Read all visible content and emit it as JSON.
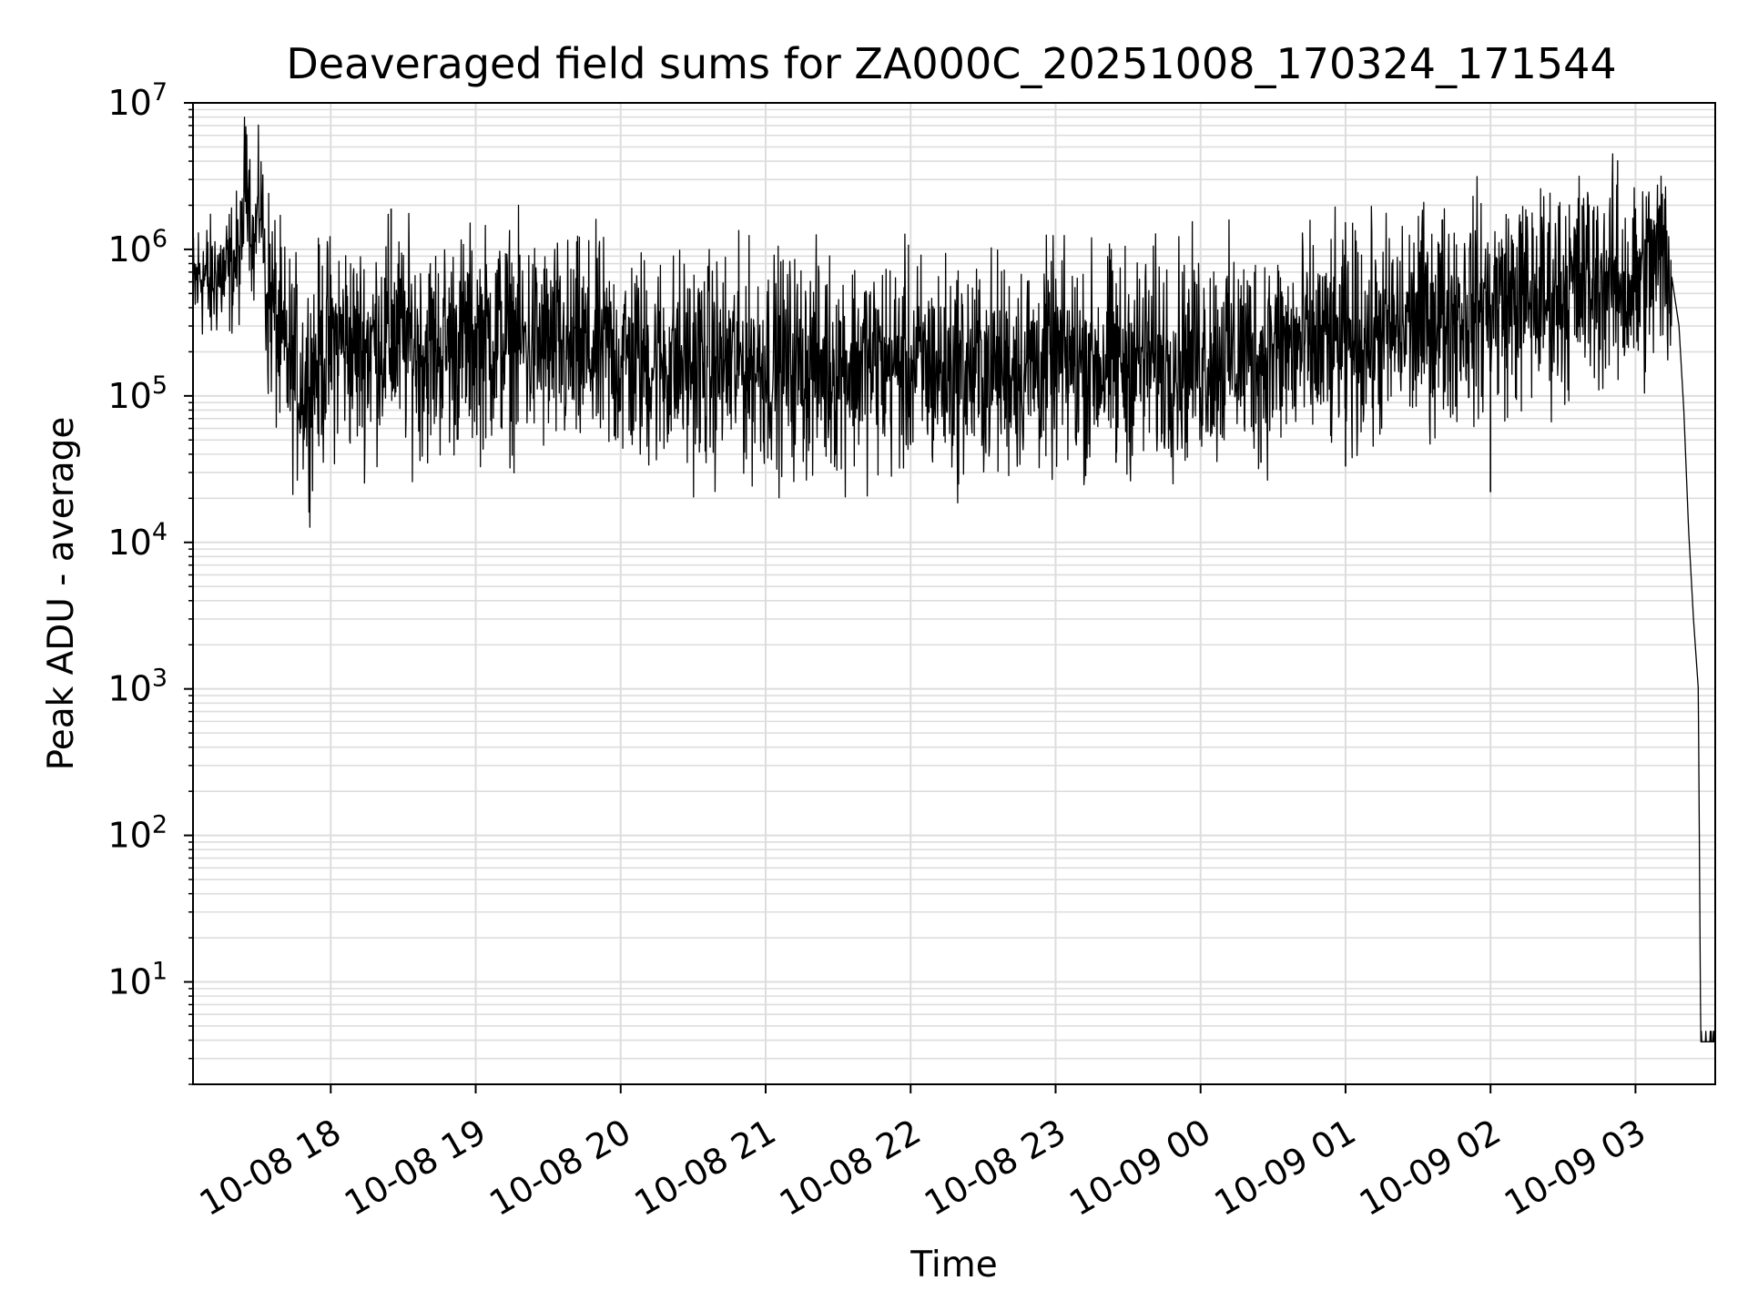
{
  "chart_data": {
    "type": "line",
    "title": "Deaveraged field sums for ZA000C_20251008_170324_171544",
    "xlabel": "Time",
    "ylabel": "Peak ADU - average",
    "yscale": "log",
    "ylim": [
      2,
      10000000
    ],
    "xlim": [
      "2025-10-08 17:03",
      "2025-10-09 03:33"
    ],
    "grid": true,
    "line_color": "#000000",
    "grid_color": "#dddddd",
    "x_ticks": [
      "2025-10-08 18:00",
      "2025-10-08 19:00",
      "2025-10-08 20:00",
      "2025-10-08 21:00",
      "2025-10-08 22:00",
      "2025-10-08 23:00",
      "2025-10-09 00:00",
      "2025-10-09 01:00",
      "2025-10-09 02:00",
      "2025-10-09 03:00"
    ],
    "x_tick_labels": [
      "10-08 18",
      "10-08 19",
      "10-08 20",
      "10-08 21",
      "10-08 22",
      "10-08 23",
      "10-09 00",
      "10-09 01",
      "10-09 02",
      "10-09 03"
    ],
    "y_ticks": [
      {
        "base": "10",
        "exp": "1"
      },
      {
        "base": "10",
        "exp": "2"
      },
      {
        "base": "10",
        "exp": "3"
      },
      {
        "base": "10",
        "exp": "4"
      },
      {
        "base": "10",
        "exp": "5"
      },
      {
        "base": "10",
        "exp": "6"
      },
      {
        "base": "10",
        "exp": "7"
      }
    ],
    "series": [
      {
        "points": [
          [
            "2025-10-08 17:03",
            500000
          ],
          [
            "2025-10-08 17:06",
            700000
          ],
          [
            "2025-10-08 17:08",
            650000
          ],
          [
            "2025-10-08 17:10",
            550000
          ],
          [
            "2025-10-08 17:13",
            700000
          ],
          [
            "2025-10-08 17:16",
            650000
          ],
          [
            "2025-10-08 17:20",
            800000
          ],
          [
            "2025-10-08 17:23",
            900000
          ],
          [
            "2025-10-08 17:25",
            5000000
          ],
          [
            "2025-10-08 17:28",
            900000
          ],
          [
            "2025-10-08 17:31",
            2500000
          ],
          [
            "2025-10-08 17:33",
            600000
          ],
          [
            "2025-10-08 17:36",
            400000
          ],
          [
            "2025-10-08 17:40",
            200000
          ],
          [
            "2025-10-08 17:45",
            150000
          ],
          [
            "2025-10-08 17:50",
            120000
          ],
          [
            "2025-10-08 17:55",
            180000
          ],
          [
            "2025-10-08 18:00",
            220000
          ],
          [
            "2025-10-08 18:05",
            250000
          ],
          [
            "2025-10-08 18:10",
            200000
          ],
          [
            "2025-10-08 18:15",
            220000
          ],
          [
            "2025-10-08 18:20",
            250000
          ],
          [
            "2025-10-08 18:30",
            240000
          ],
          [
            "2025-10-08 18:40",
            200000
          ],
          [
            "2025-10-08 18:50",
            230000
          ],
          [
            "2025-10-08 19:00",
            240000
          ],
          [
            "2025-10-08 19:10",
            250000
          ],
          [
            "2025-10-08 19:20",
            230000
          ],
          [
            "2025-10-08 19:30",
            210000
          ],
          [
            "2025-10-08 19:40",
            190000
          ],
          [
            "2025-10-08 19:50",
            200000
          ],
          [
            "2025-10-08 20:00",
            180000
          ],
          [
            "2025-10-08 20:20",
            170000
          ],
          [
            "2025-10-08 20:40",
            160000
          ],
          [
            "2025-10-08 21:00",
            170000
          ],
          [
            "2025-10-08 21:20",
            160000
          ],
          [
            "2025-10-08 21:40",
            170000
          ],
          [
            "2025-10-08 22:00",
            160000
          ],
          [
            "2025-10-08 22:20",
            150000
          ],
          [
            "2025-10-08 22:40",
            160000
          ],
          [
            "2025-10-08 23:00",
            170000
          ],
          [
            "2025-10-08 23:20",
            170000
          ],
          [
            "2025-10-08 23:40",
            180000
          ],
          [
            "2025-10-09 00:00",
            190000
          ],
          [
            "2025-10-09 00:20",
            200000
          ],
          [
            "2025-10-09 00:40",
            210000
          ],
          [
            "2025-10-09 01:00",
            230000
          ],
          [
            "2025-10-09 01:15",
            260000
          ],
          [
            "2025-10-09 01:30",
            320000
          ],
          [
            "2025-10-09 01:45",
            380000
          ],
          [
            "2025-10-09 02:00",
            420000
          ],
          [
            "2025-10-09 02:10",
            450000
          ],
          [
            "2025-10-09 02:20",
            470000
          ],
          [
            "2025-10-09 02:30",
            520000
          ],
          [
            "2025-10-09 02:40",
            600000
          ],
          [
            "2025-10-09 02:50",
            600000
          ],
          [
            "2025-10-09 03:00",
            550000
          ],
          [
            "2025-10-09 03:05",
            700000
          ],
          [
            "2025-10-09 03:10",
            850000
          ],
          [
            "2025-10-09 03:13",
            800000
          ],
          [
            "2025-10-09 03:15",
            650000
          ],
          [
            "2025-10-09 03:18",
            300000
          ],
          [
            "2025-10-09 03:20",
            80000
          ],
          [
            "2025-10-09 03:22",
            12000
          ],
          [
            "2025-10-09 03:24",
            3000
          ],
          [
            "2025-10-09 03:26",
            1000
          ],
          [
            "2025-10-09 03:27",
            4
          ],
          [
            "2025-10-09 03:33",
            4
          ]
        ],
        "spikes_high": [
          [
            "2025-10-08 17:25",
            5000000
          ],
          [
            "2025-10-08 17:31",
            2500000
          ],
          [
            "2025-10-08 18:25",
            1900000
          ],
          [
            "2025-10-09 01:40",
            1600000
          ],
          [
            "2025-10-09 02:38",
            2000000
          ],
          [
            "2025-10-09 03:10",
            2000000
          ]
        ],
        "spikes_low": [
          [
            "2025-10-08 23:25",
            35000
          ],
          [
            "2025-10-09 00:25",
            35000
          ],
          [
            "2025-10-09 01:00",
            33000
          ],
          [
            "2025-10-09 02:00",
            22000
          ]
        ]
      }
    ]
  }
}
